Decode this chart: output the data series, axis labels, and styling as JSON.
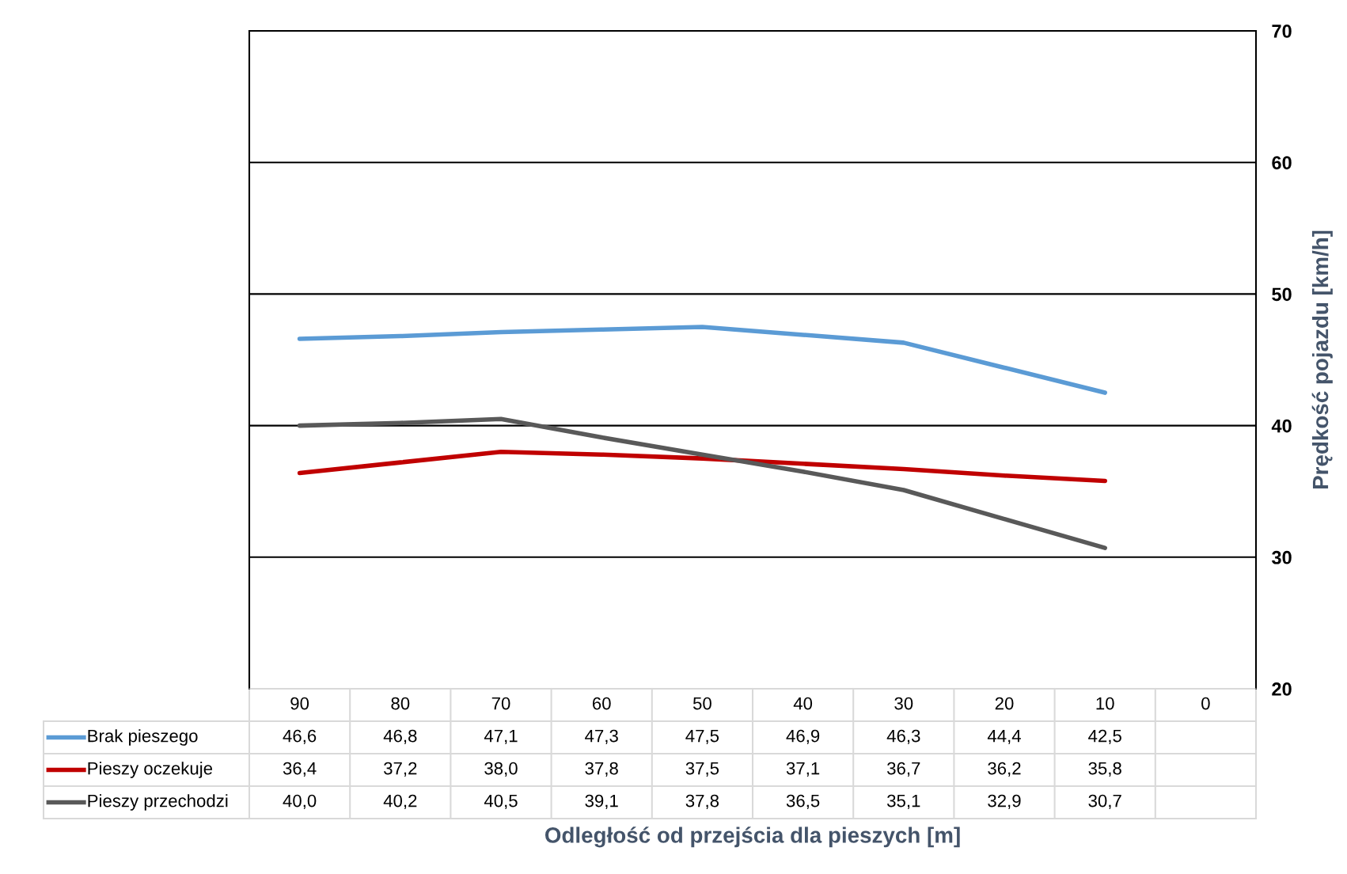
{
  "chart_data": {
    "type": "line",
    "annotations": [
      "Odległość od przejścia dla pieszych [m]"
    ],
    "ylabel": "Prędkość pojazdu [km/h]",
    "categories": [
      "90",
      "80",
      "70",
      "60",
      "50",
      "40",
      "30",
      "20",
      "10",
      "0"
    ],
    "series": [
      {
        "name": "Brak pieszego",
        "color": "#5b9bd5",
        "values": [
          46.6,
          46.8,
          47.1,
          47.3,
          47.5,
          46.9,
          46.3,
          44.4,
          42.5,
          null
        ],
        "value_labels": [
          "46,6",
          "46,8",
          "47,1",
          "47,3",
          "47,5",
          "46,9",
          "46,3",
          "44,4",
          "42,5",
          null
        ]
      },
      {
        "name": "Pieszy oczekuje",
        "color": "#c00000",
        "values": [
          36.4,
          37.2,
          38.0,
          37.8,
          37.5,
          37.1,
          36.7,
          36.2,
          35.8,
          null
        ],
        "value_labels": [
          "36,4",
          "37,2",
          "38,0",
          "37,8",
          "37,5",
          "37,1",
          "36,7",
          "36,2",
          "35,8",
          null
        ]
      },
      {
        "name": "Pieszy przechodzi",
        "color": "#595959",
        "values": [
          40.0,
          40.2,
          40.5,
          39.1,
          37.8,
          36.5,
          35.1,
          32.9,
          30.7,
          null
        ],
        "value_labels": [
          "40,0",
          "40,2",
          "40,5",
          "39,1",
          "37,8",
          "36,5",
          "35,1",
          "32,9",
          "30,7",
          null
        ]
      }
    ],
    "ylim": [
      20,
      70
    ],
    "yticks": [
      20,
      30,
      40,
      50,
      60,
      70
    ],
    "grid": "y",
    "legend": "bottom left",
    "marker": "none",
    "line_style": "solid"
  }
}
